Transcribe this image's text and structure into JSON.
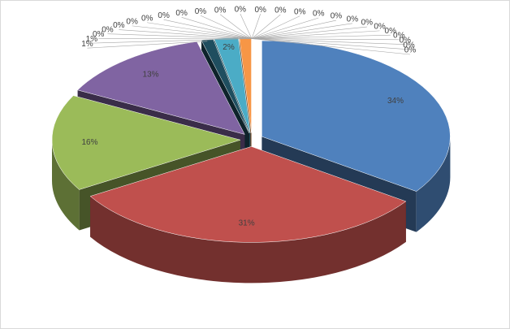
{
  "chart_data": {
    "type": "pie",
    "values": [
      34,
      31,
      16,
      13,
      1,
      2,
      1,
      0,
      0,
      0,
      0,
      0,
      0,
      0,
      0,
      0,
      0,
      0,
      0,
      0,
      0,
      0,
      0,
      0,
      0,
      0,
      0,
      0,
      0,
      0
    ],
    "value_labels": [
      "34%",
      "31%",
      "16%",
      "13%",
      "1%",
      "2%",
      "1%",
      "0%",
      "0%",
      "0%",
      "0%",
      "0%",
      "0%",
      "0%",
      "0%",
      "0%",
      "0%",
      "0%",
      "0%",
      "0%",
      "0%",
      "0%",
      "0%",
      "0%",
      "0%",
      "0%",
      "0%",
      "0%",
      "0%",
      "0%"
    ],
    "colors": [
      "#4f81bd",
      "#c0504d",
      "#9bbb59",
      "#8064a2",
      "#1f4e5f",
      "#4bacc6",
      "#f79646",
      "#2c4d75",
      "#772c2a"
    ]
  }
}
